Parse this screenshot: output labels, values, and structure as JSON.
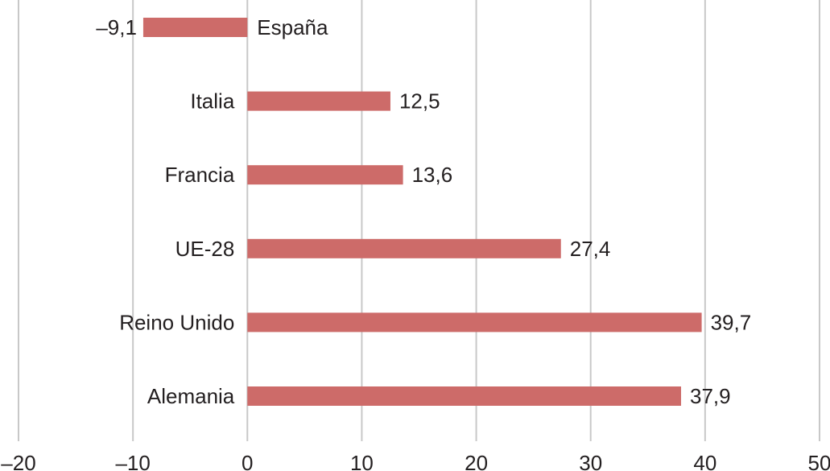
{
  "chart_data": {
    "type": "bar",
    "orientation": "horizontal",
    "categories": [
      "España",
      "Italia",
      "Francia",
      "UE-28",
      "Reino Unido",
      "Alemania"
    ],
    "values": [
      -9.1,
      12.5,
      13.6,
      27.4,
      39.7,
      37.9
    ],
    "value_labels": [
      "–9,1",
      "12,5",
      "13,6",
      "27,4",
      "39,7",
      "37,9"
    ],
    "xlim": [
      -20,
      50
    ],
    "x_ticks": [
      -20,
      -10,
      0,
      10,
      20,
      30,
      40,
      50
    ],
    "x_tick_labels": [
      "–20",
      "–10",
      "0",
      "10",
      "20",
      "30",
      "40",
      "50"
    ],
    "grid": true,
    "legend": "none",
    "bar_color": "#cd6b69",
    "grid_color": "#c8c8c8",
    "text_color": "#231f20"
  }
}
